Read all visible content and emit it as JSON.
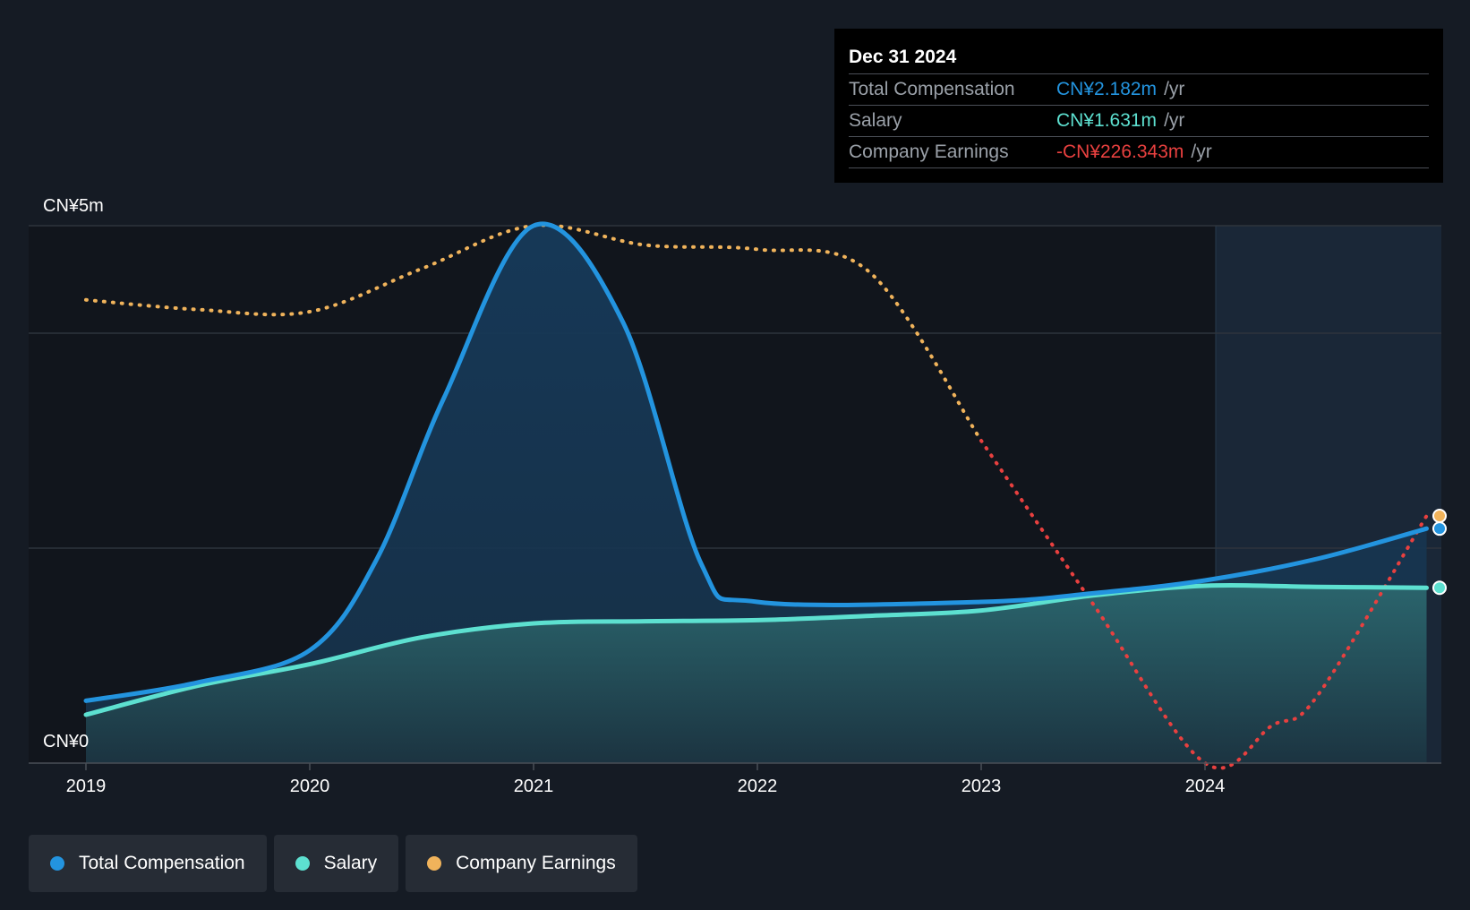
{
  "chart_data": {
    "type": "area",
    "x_ticks": [
      "2019",
      "2020",
      "2021",
      "2022",
      "2023",
      "2024"
    ],
    "y_tick_labels": [
      "CN¥5m",
      "CN¥0"
    ],
    "ylim": [
      0,
      5
    ],
    "xlim": [
      2019,
      2025
    ],
    "grid": true,
    "legend_placement": "bottom-left",
    "series": [
      {
        "name": "Total Compensation",
        "color": "#2394df",
        "points": [
          [
            2019,
            0.58
          ],
          [
            2019.5,
            0.75
          ],
          [
            2020,
            1.05
          ],
          [
            2020.3,
            1.9
          ],
          [
            2020.6,
            3.4
          ],
          [
            2021,
            5.0
          ],
          [
            2021.4,
            4.1
          ],
          [
            2021.75,
            1.85
          ],
          [
            2022,
            1.5
          ],
          [
            2023,
            1.5
          ],
          [
            2023.5,
            1.58
          ],
          [
            2024,
            1.7
          ],
          [
            2024.5,
            1.9
          ],
          [
            2024.99,
            2.182
          ]
        ]
      },
      {
        "name": "Salary",
        "color": "#5de0d0",
        "points": [
          [
            2019,
            0.45
          ],
          [
            2019.5,
            0.72
          ],
          [
            2020,
            0.92
          ],
          [
            2020.5,
            1.17
          ],
          [
            2021,
            1.3
          ],
          [
            2021.5,
            1.32
          ],
          [
            2022,
            1.33
          ],
          [
            2022.5,
            1.37
          ],
          [
            2023,
            1.42
          ],
          [
            2023.5,
            1.56
          ],
          [
            2024,
            1.65
          ],
          [
            2024.5,
            1.64
          ],
          [
            2024.99,
            1.631
          ]
        ]
      },
      {
        "name": "Company Earnings",
        "color": "#f0b35b",
        "negative_color": "#e8403f",
        "points": [
          [
            2019,
            4.31
          ],
          [
            2019.5,
            4.22
          ],
          [
            2020,
            4.2
          ],
          [
            2020.5,
            4.6
          ],
          [
            2021,
            5.0
          ],
          [
            2021.5,
            4.82
          ],
          [
            2022,
            4.78
          ],
          [
            2022.5,
            4.57
          ],
          [
            2023,
            3.0
          ],
          [
            2023.5,
            1.48
          ],
          [
            2024,
            0.0
          ],
          [
            2024.3,
            0.35
          ],
          [
            2024.5,
            0.62
          ],
          [
            2024.99,
            2.3
          ]
        ]
      }
    ]
  },
  "tooltip": {
    "date": "Dec 31 2024",
    "rows": [
      {
        "label": "Total Compensation",
        "value": "CN¥2.182m",
        "unit": "/yr",
        "color": "#2394df"
      },
      {
        "label": "Salary",
        "value": "CN¥1.631m",
        "unit": "/yr",
        "color": "#5de0d0"
      },
      {
        "label": "Company Earnings",
        "value": "-CN¥226.343m",
        "unit": "/yr",
        "color": "#e8403f"
      }
    ]
  },
  "legend": [
    {
      "label": "Total Compensation",
      "color": "#2394df"
    },
    {
      "label": "Salary",
      "color": "#5de0d0"
    },
    {
      "label": "Company Earnings",
      "color": "#f0b35b"
    }
  ]
}
